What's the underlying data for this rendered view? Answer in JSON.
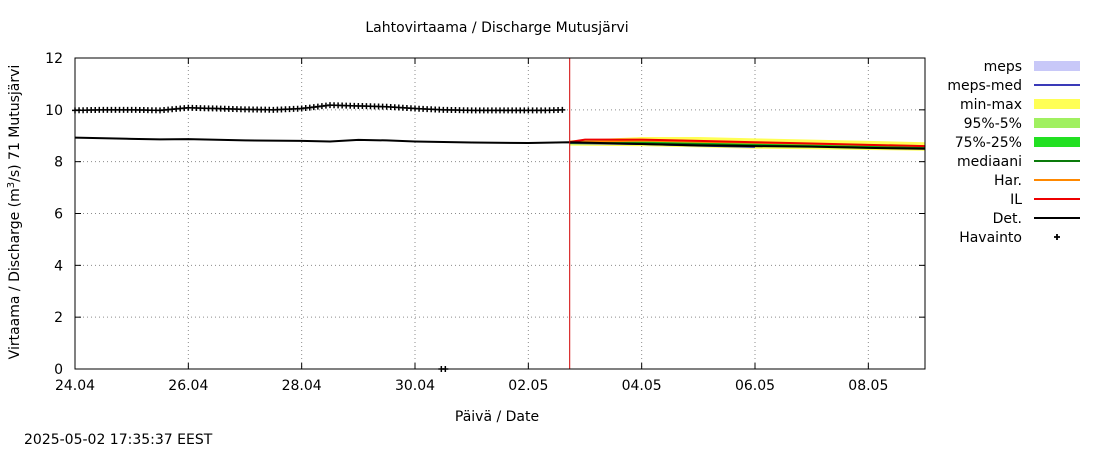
{
  "chart_data": {
    "type": "line",
    "title": "Lahtovirtaama / Discharge  Mutusjärvi",
    "xlabel": "Päivä / Date",
    "ylabel_pre": "Virtaama / Discharge (m",
    "ylabel_sup": "3",
    "ylabel_post": "/s)  71 Mutusjärvi",
    "timestamp": "2025-05-02 17:35:37 EEST",
    "x_start": "24.04",
    "x_end": "09.05",
    "xlim_days": [
      0,
      15
    ],
    "ylim": [
      0,
      12
    ],
    "grid": true,
    "legend_position": "right",
    "x_ticks": [
      {
        "day": 0,
        "label": "24.04"
      },
      {
        "day": 2,
        "label": "26.04"
      },
      {
        "day": 4,
        "label": "28.04"
      },
      {
        "day": 6,
        "label": "30.04"
      },
      {
        "day": 8,
        "label": "02.05"
      },
      {
        "day": 10,
        "label": "04.05"
      },
      {
        "day": 12,
        "label": "06.05"
      },
      {
        "day": 14,
        "label": "08.05"
      }
    ],
    "y_ticks": [
      0,
      2,
      4,
      6,
      8,
      10,
      12
    ],
    "forecast_start_day": 8.73,
    "legend": [
      {
        "key": "meps",
        "label": "meps",
        "color": "#c8c8f8",
        "style": "box"
      },
      {
        "key": "meps_med",
        "label": "meps-med",
        "color": "#3a3ab8",
        "style": "line"
      },
      {
        "key": "minmax",
        "label": "min-max",
        "color": "#ffff55",
        "style": "box"
      },
      {
        "key": "p95_5",
        "label": "95%-5%",
        "color": "#a0f060",
        "style": "box"
      },
      {
        "key": "p75_25",
        "label": "75%-25%",
        "color": "#22e022",
        "style": "box"
      },
      {
        "key": "mediaani",
        "label": "mediaani",
        "color": "#0a7a0a",
        "style": "line"
      },
      {
        "key": "har",
        "label": "Har.",
        "color": "#ff8800",
        "style": "line"
      },
      {
        "key": "il",
        "label": "IL",
        "color": "#ee0000",
        "style": "line"
      },
      {
        "key": "det",
        "label": "Det.",
        "color": "#000000",
        "style": "line"
      },
      {
        "key": "havainto",
        "label": "Havainto",
        "color": "#000000",
        "style": "plus"
      }
    ],
    "series": {
      "det": {
        "x": [
          0,
          1,
          1.5,
          2,
          3,
          4,
          4.5,
          5,
          5.5,
          6,
          7,
          8,
          8.73,
          10,
          11,
          12,
          13,
          14,
          15
        ],
        "y": [
          8.93,
          8.88,
          8.86,
          8.87,
          8.82,
          8.8,
          8.78,
          8.84,
          8.82,
          8.78,
          8.74,
          8.72,
          8.75,
          8.68,
          8.63,
          8.6,
          8.58,
          8.53,
          8.5
        ]
      },
      "havainto": {
        "x": [
          0,
          0.5,
          1,
          1.5,
          2,
          2.5,
          3,
          3.5,
          4,
          4.5,
          5,
          5.5,
          6,
          6.5,
          7,
          7.5,
          8,
          8.3,
          8.6
        ],
        "y": [
          9.98,
          10.0,
          10.0,
          9.98,
          10.08,
          10.05,
          10.02,
          10.0,
          10.05,
          10.18,
          10.15,
          10.12,
          10.05,
          10.0,
          9.98,
          9.98,
          9.98,
          9.98,
          10.0
        ],
        "outlier_x": 6.5,
        "outlier_y": 0
      },
      "minmax": {
        "x": [
          8.73,
          10,
          11,
          12,
          13,
          14,
          15
        ],
        "lo": [
          8.62,
          8.6,
          8.55,
          8.5,
          8.48,
          8.45,
          8.42
        ],
        "hi": [
          8.82,
          8.95,
          8.95,
          8.9,
          8.85,
          8.8,
          8.75
        ]
      },
      "p95_5": {
        "x": [
          8.73,
          10,
          11,
          12,
          13,
          14,
          15
        ],
        "lo": [
          8.66,
          8.65,
          8.6,
          8.56,
          8.53,
          8.5,
          8.47
        ],
        "hi": [
          8.8,
          8.82,
          8.8,
          8.76,
          8.72,
          8.68,
          8.64
        ]
      },
      "p75_25": {
        "x": [
          8.73,
          10,
          11,
          12,
          13,
          14,
          15
        ],
        "lo": [
          8.7,
          8.7,
          8.66,
          8.62,
          8.58,
          8.55,
          8.52
        ],
        "hi": [
          8.78,
          8.8,
          8.76,
          8.72,
          8.68,
          8.64,
          8.6
        ]
      },
      "mediaani": {
        "x": [
          8.73,
          10,
          11,
          12,
          13,
          14,
          15
        ],
        "y": [
          8.72,
          8.72,
          8.68,
          8.64,
          8.6,
          8.56,
          8.53
        ]
      },
      "meps_med": {
        "x": [
          8.73,
          10,
          11,
          12
        ],
        "y": [
          8.7,
          8.66,
          8.6,
          8.55
        ]
      },
      "har": {
        "x": [
          8.73,
          10,
          11,
          12,
          13,
          14,
          15
        ],
        "y": [
          8.76,
          8.8,
          8.76,
          8.72,
          8.68,
          8.64,
          8.6
        ]
      },
      "il": {
        "x": [
          8.73,
          9,
          10,
          11,
          12,
          13,
          14,
          15
        ],
        "y": [
          8.76,
          8.85,
          8.85,
          8.8,
          8.75,
          8.7,
          8.65,
          8.6
        ]
      }
    }
  }
}
